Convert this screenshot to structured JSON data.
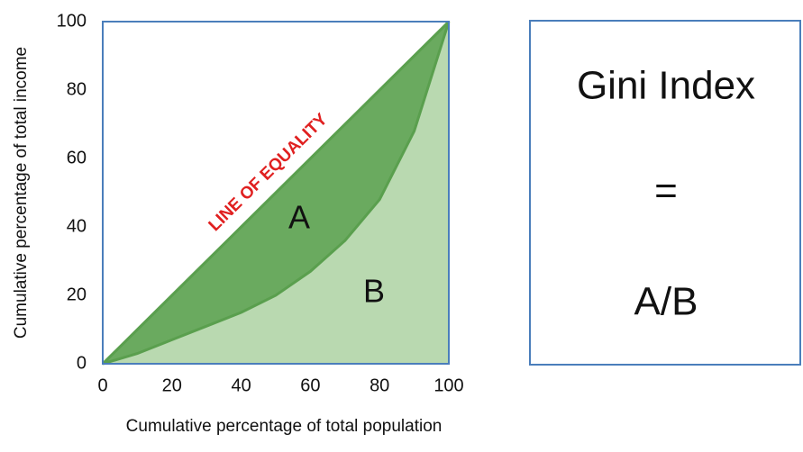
{
  "chart_data": {
    "type": "lorenz",
    "x_label": "Cumulative percentage of total population",
    "y_label": "Cumulative percentage of total income",
    "x": [
      0,
      10,
      20,
      30,
      40,
      50,
      60,
      70,
      80,
      90,
      100
    ],
    "series": [
      {
        "name": "LINE OF EQUALITY",
        "color": "#5a9f4e",
        "fill": "#6aaa5f",
        "values": [
          0,
          10,
          20,
          30,
          40,
          50,
          60,
          70,
          80,
          90,
          100
        ]
      },
      {
        "color": "#5a9f4e",
        "fill": "#b9d9b0",
        "values": [
          0,
          3,
          7,
          11,
          15,
          20,
          27,
          36,
          48,
          68,
          100
        ]
      }
    ],
    "annotations": [
      "A",
      "B"
    ],
    "xlim": [
      0,
      100
    ],
    "ylim": [
      0,
      100
    ],
    "xticks": [
      0,
      20,
      40,
      60,
      80,
      100
    ],
    "yticks": [
      0,
      20,
      40,
      60,
      80,
      100
    ]
  },
  "formula": {
    "title": "Gini Index",
    "equals": "=",
    "expression": "A/B"
  }
}
